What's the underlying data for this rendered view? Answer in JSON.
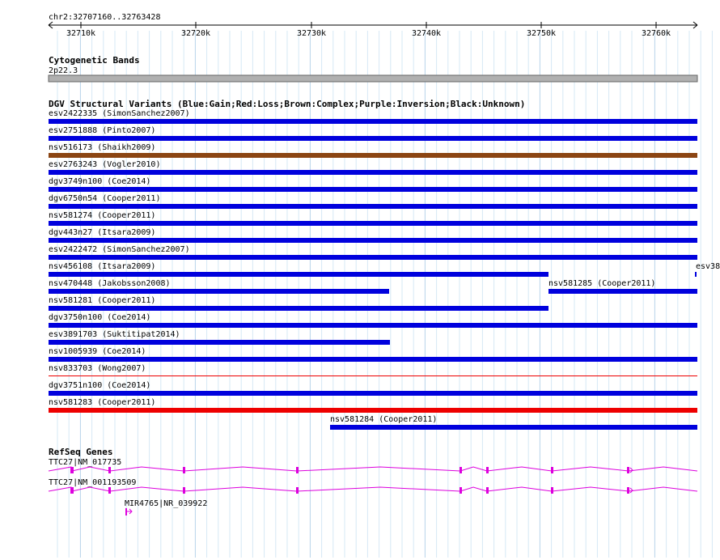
{
  "ruler": {
    "title": "chr2:32707160..32763428",
    "ticks": [
      "32710k",
      "32720k",
      "32730k",
      "32740k",
      "32750k",
      "32760k"
    ]
  },
  "cytoband": {
    "heading": "Cytogenetic Bands",
    "band": "2p22.3",
    "color": "#a0a0a0"
  },
  "dgv": {
    "heading": "DGV Structural Variants (Blue:Gain;Red:Loss;Brown:Complex;Purple:Inversion;Black:Unknown)",
    "colors": {
      "gain": "#0000dd",
      "loss": "#ee0000",
      "complex": "#8b4513"
    },
    "variants": [
      {
        "label": "esv2422335 (SimonSanchez2007)",
        "type": "gain"
      },
      {
        "label": "esv2751888 (Pinto2007)",
        "type": "gain"
      },
      {
        "label": "nsv516173 (Shaikh2009)",
        "type": "complex"
      },
      {
        "label": "esv2763243 (Vogler2010)",
        "type": "gain"
      },
      {
        "label": "dgv3749n100 (Coe2014)",
        "type": "gain"
      },
      {
        "label": "dgv6750n54 (Cooper2011)",
        "type": "gain"
      },
      {
        "label": "nsv581274 (Cooper2011)",
        "type": "gain"
      },
      {
        "label": "dgv443n27 (Itsara2009)",
        "type": "gain"
      },
      {
        "label": "esv2422472 (SimonSanchez2007)",
        "type": "gain"
      },
      {
        "label": "nsv456108 (Itsara2009)",
        "type": "gain"
      },
      {
        "label": "esv38",
        "type": "gain"
      },
      {
        "label": "nsv470448 (Jakobsson2008)",
        "type": "gain"
      },
      {
        "label": "nsv581285 (Cooper2011)",
        "type": "gain"
      },
      {
        "label": "nsv581281 (Cooper2011)",
        "type": "gain"
      },
      {
        "label": "dgv3750n100 (Coe2014)",
        "type": "gain"
      },
      {
        "label": "esv3891703 (Suktitipat2014)",
        "type": "gain"
      },
      {
        "label": "nsv1005939 (Coe2014)",
        "type": "gain"
      },
      {
        "label": "nsv833703 (Wong2007)",
        "type": "loss"
      },
      {
        "label": "dgv3751n100 (Coe2014)",
        "type": "gain"
      },
      {
        "label": "nsv581283 (Cooper2011)",
        "type": "loss"
      },
      {
        "label": "nsv581284 (Cooper2011)",
        "type": "gain"
      }
    ]
  },
  "refseq": {
    "heading": "RefSeq Genes",
    "color": "#dd00dd",
    "genes": [
      {
        "label": "TTC27|NM_017735"
      },
      {
        "label": "TTC27|NM_001193509"
      },
      {
        "label": "MIR4765|NR_039922"
      }
    ]
  }
}
